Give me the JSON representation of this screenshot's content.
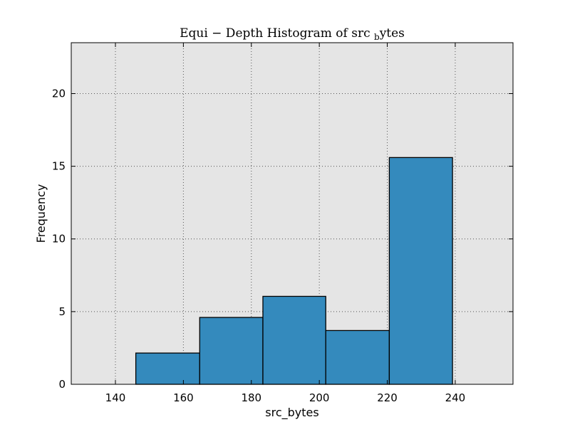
{
  "chart_data": {
    "type": "bar",
    "title": "Equi − Depth Histogram of src_bytes",
    "xlabel": "src_bytes",
    "ylabel": "Frequency",
    "xlim": [
      127,
      257
    ],
    "ylim": [
      0,
      23.5
    ],
    "xticks": [
      140,
      160,
      180,
      200,
      220,
      240
    ],
    "yticks": [
      0,
      5,
      10,
      15,
      20
    ],
    "grid": true,
    "bins": [
      {
        "x0": 146,
        "x1": 164.8,
        "value": 2.15
      },
      {
        "x0": 164.8,
        "x1": 183.4,
        "value": 4.6
      },
      {
        "x0": 183.4,
        "x1": 201.9,
        "value": 6.05
      },
      {
        "x0": 201.9,
        "x1": 220.6,
        "value": 3.7
      },
      {
        "x0": 220.6,
        "x1": 239.2,
        "value": 15.6
      }
    ],
    "colors": {
      "bar": "#348abd",
      "plot_bg": "#e5e5e5",
      "edge": "#000000",
      "grid": "#555555"
    }
  }
}
